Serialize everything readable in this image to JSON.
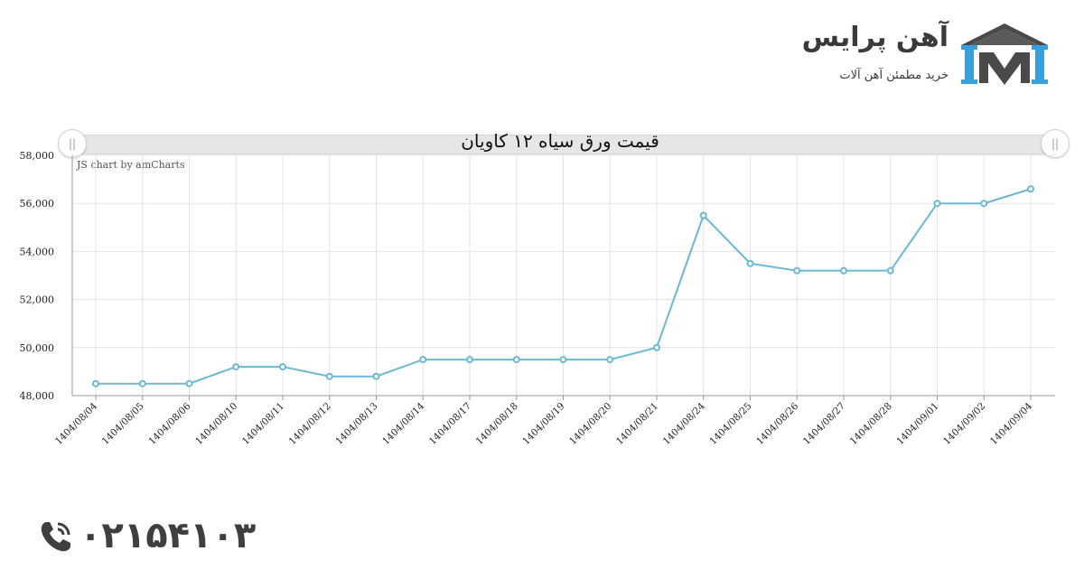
{
  "brand": {
    "name": "آهن پرایس",
    "tagline": "خرید مطمئن آهن آلات",
    "color_dark": "#4a4a4a",
    "color_accent": "#3aa0dc"
  },
  "chart": {
    "credit": "JS chart by amCharts",
    "line_color": "#6bb7d6",
    "grid_color": "#e3e3e3"
  },
  "chart_data": {
    "type": "line",
    "title": "قیمت ورق سیاه ۱۲ کاویان",
    "xlabel": "",
    "ylabel": "",
    "categories": [
      "1404/08/04",
      "1404/08/05",
      "1404/08/06",
      "1404/08/10",
      "1404/08/11",
      "1404/08/12",
      "1404/08/13",
      "1404/08/14",
      "1404/08/17",
      "1404/08/18",
      "1404/08/19",
      "1404/08/20",
      "1404/08/21",
      "1404/08/24",
      "1404/08/25",
      "1404/08/26",
      "1404/08/27",
      "1404/08/28",
      "1404/09/01",
      "1404/09/02",
      "1404/09/04"
    ],
    "series": [
      {
        "values": [
          48500,
          48500,
          48500,
          49200,
          49200,
          48800,
          48800,
          49500,
          49500,
          49500,
          49500,
          49500,
          50000,
          55500,
          53500,
          53200,
          53200,
          53200,
          56000,
          56000,
          56600
        ]
      }
    ],
    "ylim": [
      48000,
      58000
    ],
    "yticks": [
      "48,000",
      "50,000",
      "52,000",
      "54,000",
      "56,000",
      "58,000"
    ],
    "ytick_values": [
      48000,
      50000,
      52000,
      54000,
      56000,
      58000
    ],
    "grid": true,
    "legend": "none"
  },
  "contact": {
    "phone": "۰۲۱۵۴۱۰۳",
    "icon": "phone-icon"
  }
}
